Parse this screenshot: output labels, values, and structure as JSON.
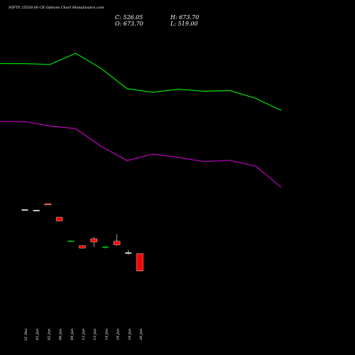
{
  "chart_data": {
    "type": "candlestick",
    "title": "NIFTY 25550.00 CE Options Chart Munafasutra.com",
    "ohlc_readout": {
      "close": "C: 526.05",
      "open": "O: 673.70",
      "high": "H: 673.70",
      "low": "L: 519.00"
    },
    "colors": {
      "background": "#000000",
      "up": "#00c800",
      "down": "#ff0000",
      "neutral": "#ffffff",
      "line_upper": "#00e000",
      "line_lower": "#c000c0"
    },
    "dates": [
      "31 Dec",
      "01 Jan",
      "02 Jan",
      "06 Jan",
      "09 Jan",
      "12 Jan",
      "13 Jan",
      "14 Jan",
      "16 Jan",
      "19 Jan",
      "20 Jan"
    ],
    "candles": [
      {
        "open": 1550,
        "high": 1550,
        "low": 1550,
        "close": 1550,
        "dir": "flat"
      },
      {
        "open": 1542,
        "high": 1542,
        "low": 1542,
        "close": 1542,
        "dir": "flat"
      },
      {
        "open": 1630,
        "high": 1630,
        "low": 1630,
        "close": 1630,
        "dir": "down"
      },
      {
        "open": 1440,
        "high": 1445,
        "low": 1387,
        "close": 1389,
        "dir": "down"
      },
      {
        "open": 1110,
        "high": 1112,
        "low": 1108,
        "close": 1108,
        "dir": "up"
      },
      {
        "open": 1041,
        "high": 1045,
        "low": 1001,
        "close": 1008,
        "dir": "down"
      },
      {
        "open": 1137,
        "high": 1160,
        "low": 1022,
        "close": 1091,
        "dir": "down"
      },
      {
        "open": 1027,
        "high": 1033,
        "low": 1000,
        "close": 1027,
        "dir": "up"
      },
      {
        "open": 1102,
        "high": 1204,
        "low": 1040,
        "close": 1051,
        "dir": "down"
      },
      {
        "open": 944,
        "high": 982,
        "low": 911,
        "close": 944,
        "dir": "flat"
      },
      {
        "open": 929,
        "high": 929,
        "low": 682,
        "close": 682,
        "dir": "down"
      }
    ],
    "upper_line": [
      3605,
      3604,
      3592,
      3749,
      3534,
      3251,
      3200,
      3244,
      3215,
      3225,
      3116,
      2944
    ],
    "lower_line": [
      2788,
      2788,
      2725,
      2688,
      2437,
      2238,
      2329,
      2283,
      2223,
      2242,
      2159,
      1862
    ],
    "ylim": [
      0,
      4500
    ]
  }
}
